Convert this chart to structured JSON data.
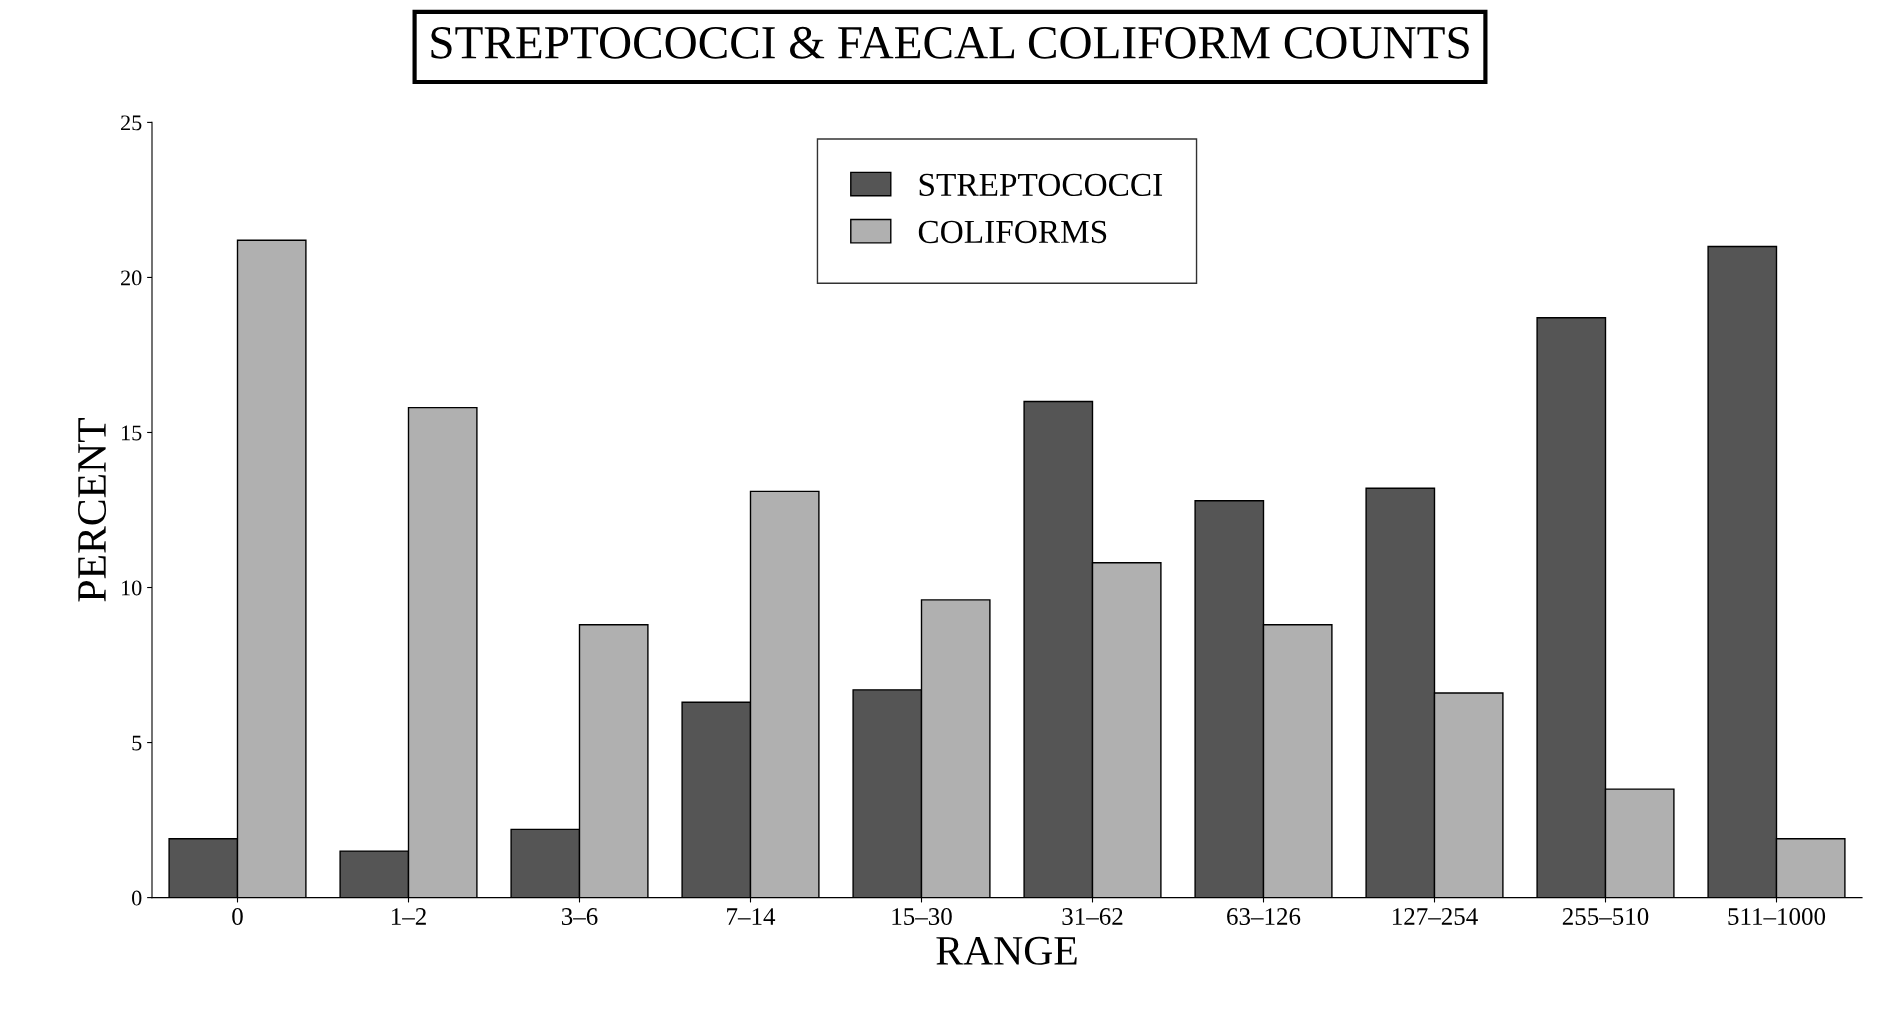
{
  "chart_data": {
    "type": "bar",
    "title": "STREPTOCOCCI & FAECAL COLIFORM COUNTS",
    "xlabel": "RANGE",
    "ylabel": "PERCENT",
    "categories": [
      "0",
      "1–2",
      "3–6",
      "7–14",
      "15–30",
      "31–62",
      "63–126",
      "127–254",
      "255–510",
      "511–1000"
    ],
    "series": [
      {
        "name": "STREPTOCOCCI",
        "color": "#555555",
        "values": [
          1.9,
          1.5,
          2.2,
          6.3,
          6.7,
          16.0,
          12.8,
          13.2,
          18.7,
          21.0
        ]
      },
      {
        "name": "COLIFORMS",
        "color": "#b0b0b0",
        "values": [
          21.2,
          15.8,
          8.8,
          13.1,
          9.6,
          10.8,
          8.8,
          6.6,
          3.5,
          1.9
        ]
      }
    ],
    "ylim": [
      0,
      25
    ],
    "yticks": [
      0,
      5,
      10,
      15,
      20,
      25
    ],
    "grid": false,
    "legend": "top"
  }
}
